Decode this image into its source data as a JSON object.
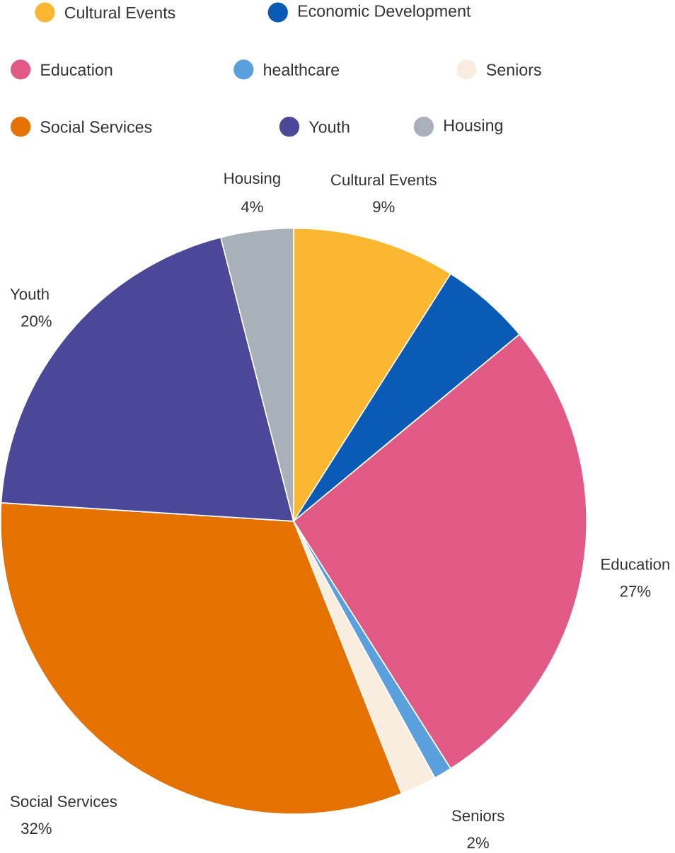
{
  "chart_data": {
    "type": "pie",
    "categories": [
      "Cultural Events",
      "Economic Development",
      "Education",
      "healthcare",
      "Seniors",
      "Social Services",
      "Youth",
      "Housing"
    ],
    "values": [
      9,
      5,
      27,
      1,
      2,
      32,
      20,
      4
    ],
    "value_labels": [
      "9%",
      null,
      "27%",
      null,
      "2%",
      "32%",
      "20%",
      "4%"
    ],
    "colors": [
      "#fbb731",
      "#0a5bb5",
      "#e05a85",
      "#5aa0dc",
      "#f9ede0",
      "#e57200",
      "#4b4899",
      "#a8b0ba"
    ],
    "legend": "top"
  }
}
